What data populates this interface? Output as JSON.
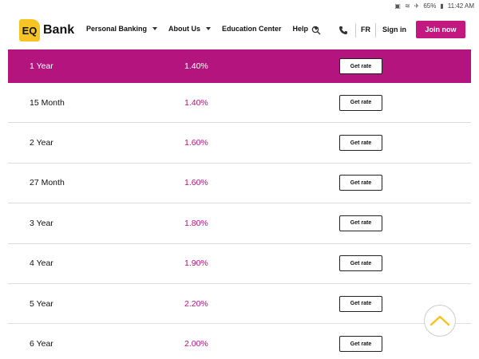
{
  "statusbar": {
    "battery": "65%",
    "time": "11:42 AM"
  },
  "header": {
    "logo_mark": "EQ",
    "logo_text": "Bank",
    "nav": [
      {
        "label": "Personal Banking",
        "has_caret": true
      },
      {
        "label": "About Us",
        "has_caret": true
      },
      {
        "label": "Education Center",
        "has_caret": false
      },
      {
        "label": "Help",
        "has_caret": true
      }
    ],
    "language": "FR",
    "signin": "Sign in",
    "join": "Join now"
  },
  "rates": [
    {
      "term": "1 Year",
      "rate": "1.40%",
      "button": "Get rate",
      "active": true
    },
    {
      "term": "15 Month",
      "rate": "1.40%",
      "button": "Get rate"
    },
    {
      "term": "2 Year",
      "rate": "1.60%",
      "button": "Get rate"
    },
    {
      "term": "27 Month",
      "rate": "1.60%",
      "button": "Get rate"
    },
    {
      "term": "3 Year",
      "rate": "1.80%",
      "button": "Get rate"
    },
    {
      "term": "4 Year",
      "rate": "1.90%",
      "button": "Get rate"
    },
    {
      "term": "5 Year",
      "rate": "2.20%",
      "button": "Get rate"
    },
    {
      "term": "6 Year",
      "rate": "2.00%",
      "button": "Get rate"
    }
  ],
  "colors": {
    "brand": "#b4147e",
    "join": "#c2187f",
    "logo": "#f7c325",
    "scroll_arrow": "#f7c325"
  },
  "icons": {
    "search": "search-icon",
    "phone": "phone-icon",
    "scroll_top": "chevron-up-icon"
  }
}
